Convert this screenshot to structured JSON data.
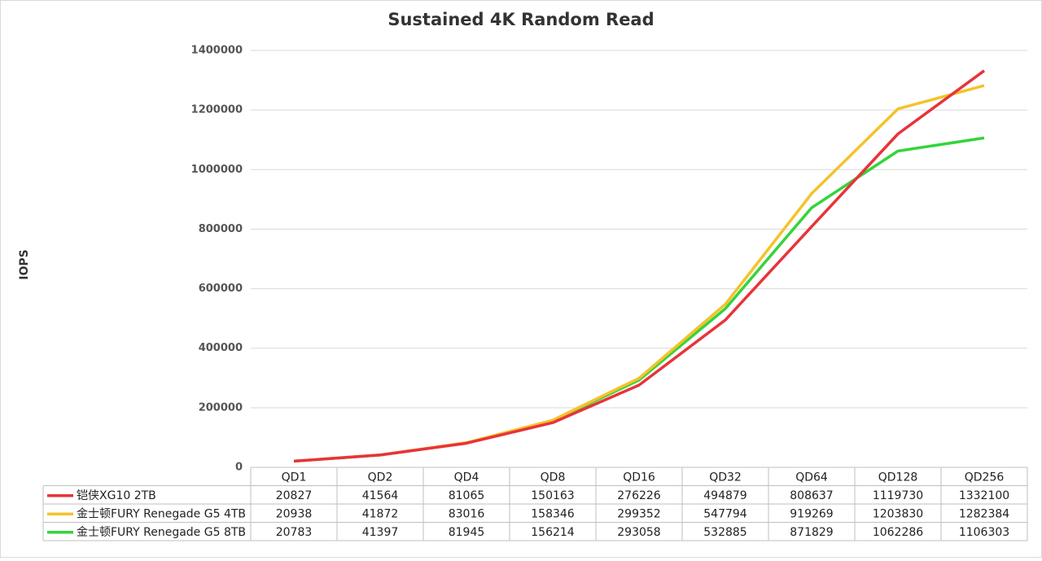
{
  "chart_data": {
    "type": "line",
    "title": "Sustained 4K Random Read",
    "y_label": "IOPS",
    "categories": [
      "QD1",
      "QD2",
      "QD4",
      "QD8",
      "QD16",
      "QD32",
      "QD64",
      "QD128",
      "QD256"
    ],
    "series": [
      {
        "name": "铠侠XG10 2TB",
        "color": "#e8333a",
        "values": [
          20827,
          41564,
          81065,
          150163,
          276226,
          494879,
          808637,
          1119730,
          1332100
        ]
      },
      {
        "name": "金士顿FURY Renegade G5 4TB",
        "color": "#f5c22b",
        "values": [
          20938,
          41872,
          83016,
          158346,
          299352,
          547794,
          919269,
          1203830,
          1282384
        ]
      },
      {
        "name": "金士顿FURY Renegade G5 8TB",
        "color": "#35d43a",
        "values": [
          20783,
          41397,
          81945,
          156214,
          293058,
          532885,
          871829,
          1062286,
          1106303
        ]
      }
    ],
    "ylim": [
      0,
      1400000
    ],
    "yticks": [
      0,
      200000,
      400000,
      600000,
      800000,
      1000000,
      1200000,
      1400000
    ],
    "grid": true
  }
}
